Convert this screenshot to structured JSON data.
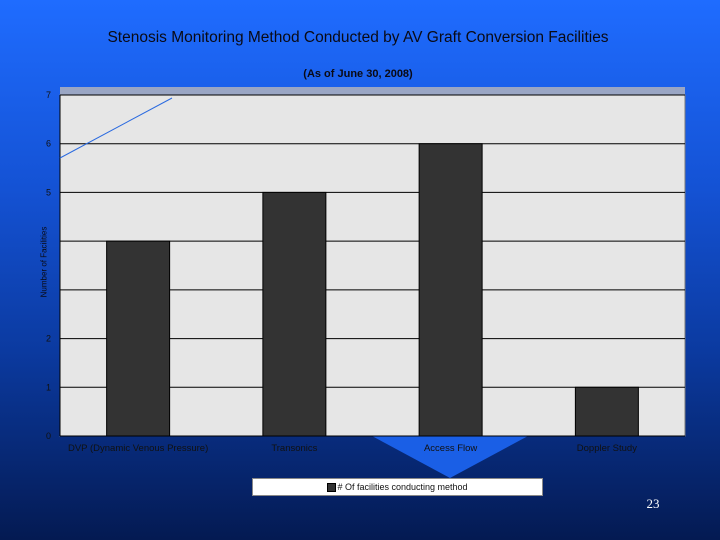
{
  "slide": {
    "page_number": "23"
  },
  "chart_data": {
    "type": "bar",
    "title": "Stenosis Monitoring Method Conducted by AV Graft Conversion Facilities",
    "subtitle": "(As of June 30, 2008)",
    "xlabel": "",
    "ylabel": "Number of Facilities",
    "categories": [
      "DVP  (Dynamic Venous Pressure)",
      "Transonics",
      "Access Flow",
      "Doppler Study"
    ],
    "series": [
      {
        "name": "# Of facilities conducting method",
        "values": [
          4,
          5,
          6,
          1
        ]
      }
    ],
    "ylim": [
      0,
      7
    ],
    "yticks": [
      "0",
      "1",
      "2",
      "",
      "",
      "5",
      "6",
      "7"
    ],
    "grid": true,
    "legend_position": "bottom",
    "colors": {
      "bar": "#333333",
      "plot_bg": "#e6e6e6",
      "gridline": "#000000",
      "accent_line": "#2a6ae0"
    }
  }
}
